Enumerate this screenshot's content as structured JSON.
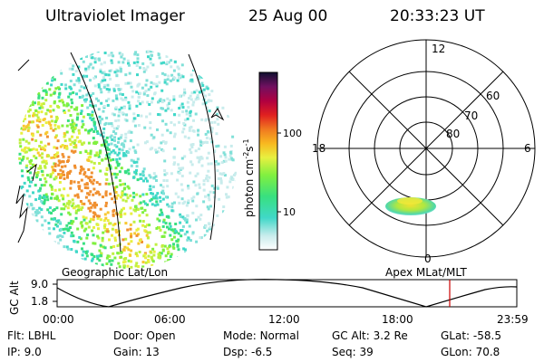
{
  "header": {
    "instrument": "Ultraviolet Imager",
    "date": "25 Aug 00",
    "time": "20:33:23 UT"
  },
  "colorbar": {
    "unit_label": "photon cm",
    "exp1": "-2",
    "s_label": "s",
    "exp2": "-1",
    "ticks": [
      "100",
      "10"
    ]
  },
  "left_panel": {
    "caption": "Geographic Lat/Lon"
  },
  "right_panel": {
    "caption": "Apex MLat/MLT",
    "mlt_labels": {
      "top": "12",
      "left": "18",
      "right": "6",
      "bottom": "0"
    },
    "lat_labels": [
      "60",
      "70",
      "80"
    ]
  },
  "altitude_plot": {
    "ylabel": "GC Alt",
    "yticks": [
      "9.0",
      "1.8"
    ],
    "xticks": [
      "00:00",
      "06:00",
      "12:00",
      "18:00",
      "23:59"
    ],
    "marker_color": "#cc0000"
  },
  "info": {
    "flt": {
      "label": "Flt:",
      "value": "LBHL"
    },
    "ip": {
      "label": "IP:",
      "value": "9.0"
    },
    "door": {
      "label": "Door:",
      "value": "Open"
    },
    "gain": {
      "label": "Gain:",
      "value": "13"
    },
    "mode": {
      "label": "Mode:",
      "value": "Normal"
    },
    "dsp": {
      "label": "Dsp:",
      "value": "-6.5"
    },
    "gcalt": {
      "label": "GC Alt:",
      "value": "3.2 Re"
    },
    "seq": {
      "label": "Seq:",
      "value": "39"
    },
    "glat": {
      "label": "GLat:",
      "value": "-58.5"
    },
    "glon": {
      "label": "GLon:",
      "value": "70.8"
    }
  }
}
